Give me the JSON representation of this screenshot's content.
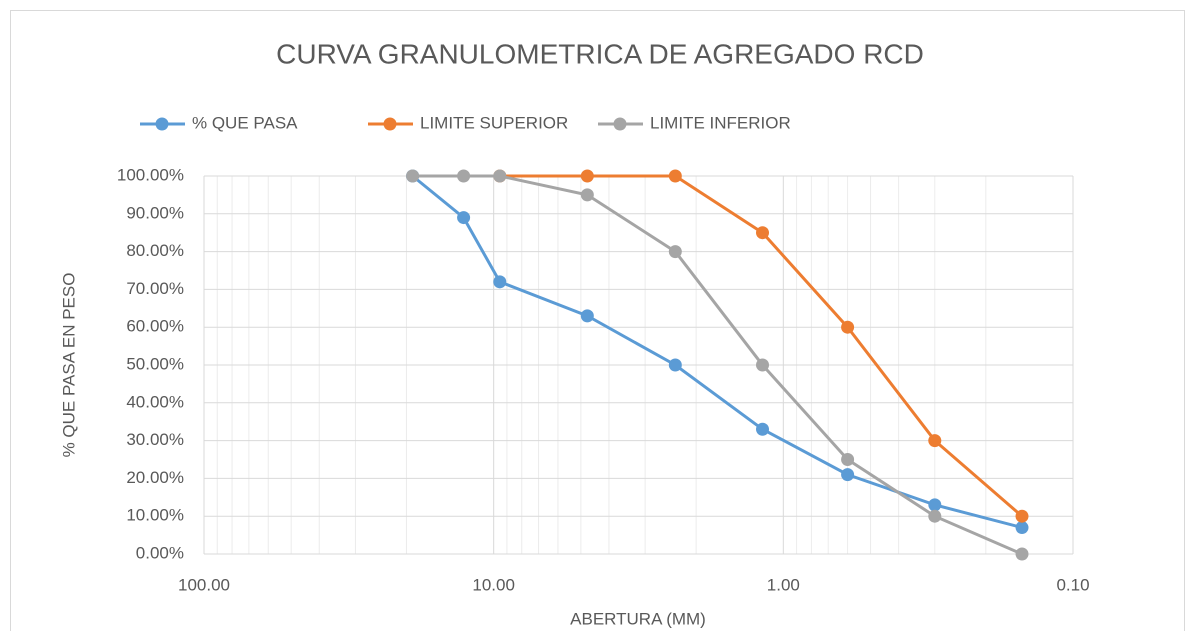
{
  "chart_data": {
    "type": "line",
    "title": "CURVA GRANULOMETRICA DE AGREGADO RCD",
    "x_label": "ABERTURA (MM)",
    "y_label": "% QUE PASA EN PESO",
    "x": [
      19.05,
      12.7,
      9.525,
      4.75,
      2.36,
      1.18,
      0.6,
      0.3,
      0.15
    ],
    "series": [
      {
        "name": "% QUE PASA",
        "color": "#5b9bd5",
        "values": [
          100,
          89,
          72,
          63,
          50,
          33,
          21,
          13,
          7
        ]
      },
      {
        "name": "LIMITE SUPERIOR",
        "color": "#ed7d31",
        "values": [
          null,
          null,
          100,
          100,
          100,
          85,
          60,
          30,
          10
        ]
      },
      {
        "name": "LIMITE INFERIOR",
        "color": "#a5a5a5",
        "values": [
          100,
          100,
          100,
          95,
          80,
          50,
          25,
          10,
          0
        ]
      }
    ],
    "xlim": [
      100,
      0.1
    ],
    "xlog": true,
    "xreverse": true,
    "xticks": [
      {
        "value": 100,
        "label": "100.00"
      },
      {
        "value": 10,
        "label": "10.00"
      },
      {
        "value": 1,
        "label": "1.00"
      },
      {
        "value": 0.1,
        "label": "0.10"
      }
    ],
    "ylim": [
      0,
      100
    ],
    "yticks": [
      {
        "value": 0,
        "label": "0.00%"
      },
      {
        "value": 10,
        "label": "10.00%"
      },
      {
        "value": 20,
        "label": "20.00%"
      },
      {
        "value": 30,
        "label": "30.00%"
      },
      {
        "value": 40,
        "label": "40.00%"
      },
      {
        "value": 50,
        "label": "50.00%"
      },
      {
        "value": 60,
        "label": "60.00%"
      },
      {
        "value": 70,
        "label": "70.00%"
      },
      {
        "value": 80,
        "label": "80.00%"
      },
      {
        "value": 90,
        "label": "90.00%"
      },
      {
        "value": 100,
        "label": "100.00%"
      }
    ],
    "grid": true,
    "minor_grid": true,
    "legend": "top"
  }
}
